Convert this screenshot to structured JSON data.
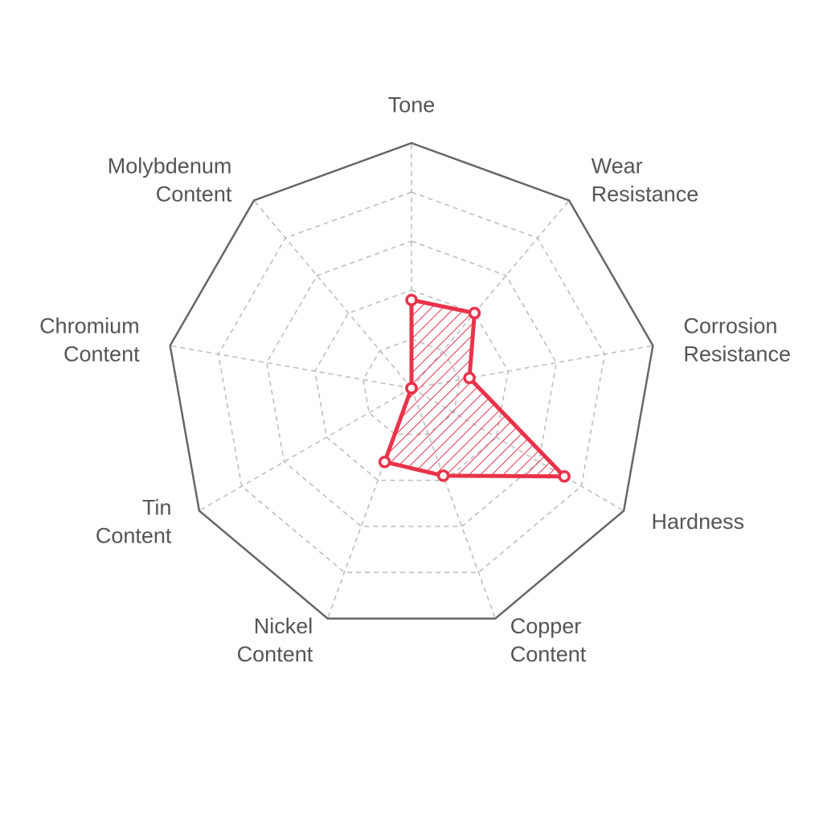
{
  "chart_data": {
    "type": "radar",
    "categories": [
      [
        "Tone"
      ],
      [
        "Wear",
        "Resistance"
      ],
      [
        "Corrosion",
        "Resistance"
      ],
      [
        "Hardness"
      ],
      [
        "Copper",
        "Content"
      ],
      [
        "Nickel",
        "Content"
      ],
      [
        "Tin",
        "Content"
      ],
      [
        "Chromium",
        "Content"
      ],
      [
        "Molybdenum",
        "Content"
      ]
    ],
    "values": [
      1.8,
      2,
      1.2,
      3.6,
      1.9,
      1.6,
      0,
      0,
      0
    ],
    "color": "#e8334a",
    "rlim": [
      0,
      5
    ],
    "rticks": [
      1,
      2,
      3,
      4,
      5
    ],
    "grid": true
  }
}
